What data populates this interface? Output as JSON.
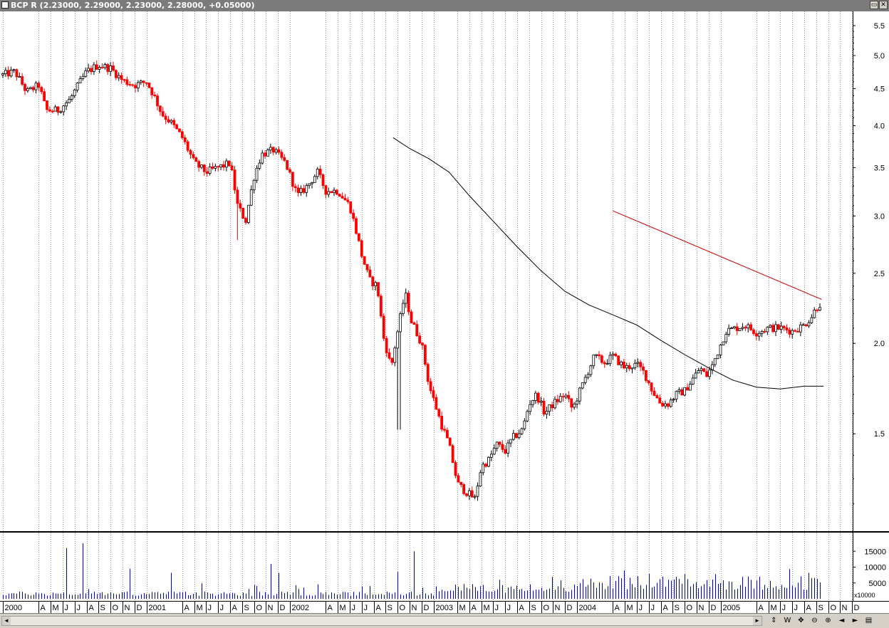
{
  "window": {
    "title": "BCP R",
    "quote": "(2.23000, 2.29000, 2.23000, 2.28000, +0.05000)",
    "buttons": [
      "▭",
      "✕"
    ]
  },
  "colors": {
    "up": "#000000",
    "down": "#ff0000",
    "volume": "#0000cc",
    "ma": "#000000",
    "trendline": "#cc0000",
    "grid": "#9a9a9a"
  },
  "chart_data": [
    {
      "type": "candlestick",
      "scale": "log",
      "ylim": [
        1.1,
        5.6
      ],
      "ytick_labels": [
        "5.5",
        "5.0",
        "4.5",
        "4.0",
        "3.5",
        "3.0",
        "2.5",
        "2.0",
        "1.5"
      ],
      "xlim": [
        "2000-01",
        "2005-11"
      ],
      "grid": "vertical dotted",
      "x_labels": [
        {
          "label": "2000",
          "date": "2000-01"
        },
        {
          "label": "A",
          "date": "2000-04"
        },
        {
          "label": "M",
          "date": "2000-05"
        },
        {
          "label": "J",
          "date": "2000-06"
        },
        {
          "label": "J",
          "date": "2000-07"
        },
        {
          "label": "A",
          "date": "2000-08"
        },
        {
          "label": "S",
          "date": "2000-09"
        },
        {
          "label": "O",
          "date": "2000-10"
        },
        {
          "label": "N",
          "date": "2000-11"
        },
        {
          "label": "D",
          "date": "2000-12"
        },
        {
          "label": "2001",
          "date": "2001-01"
        },
        {
          "label": "A",
          "date": "2001-04"
        },
        {
          "label": "M",
          "date": "2001-05"
        },
        {
          "label": "J",
          "date": "2001-06"
        },
        {
          "label": "J",
          "date": "2001-07"
        },
        {
          "label": "A",
          "date": "2001-08"
        },
        {
          "label": "S",
          "date": "2001-09"
        },
        {
          "label": "O",
          "date": "2001-10"
        },
        {
          "label": "N",
          "date": "2001-11"
        },
        {
          "label": "D",
          "date": "2001-12"
        },
        {
          "label": "2002",
          "date": "2002-01"
        },
        {
          "label": "A",
          "date": "2002-04"
        },
        {
          "label": "M",
          "date": "2002-05"
        },
        {
          "label": "J",
          "date": "2002-06"
        },
        {
          "label": "J",
          "date": "2002-07"
        },
        {
          "label": "A",
          "date": "2002-08"
        },
        {
          "label": "S",
          "date": "2002-09"
        },
        {
          "label": "O",
          "date": "2002-10"
        },
        {
          "label": "N",
          "date": "2002-11"
        },
        {
          "label": "D",
          "date": "2002-12"
        },
        {
          "label": "2003",
          "date": "2003-01"
        },
        {
          "label": "M",
          "date": "2003-03"
        },
        {
          "label": "A",
          "date": "2003-04"
        },
        {
          "label": "M",
          "date": "2003-05"
        },
        {
          "label": "J",
          "date": "2003-06"
        },
        {
          "label": "J",
          "date": "2003-07"
        },
        {
          "label": "A",
          "date": "2003-08"
        },
        {
          "label": "S",
          "date": "2003-09"
        },
        {
          "label": "O",
          "date": "2003-10"
        },
        {
          "label": "N",
          "date": "2003-11"
        },
        {
          "label": "D",
          "date": "2003-12"
        },
        {
          "label": "2004",
          "date": "2004-01"
        },
        {
          "label": "A",
          "date": "2004-04"
        },
        {
          "label": "M",
          "date": "2004-05"
        },
        {
          "label": "J",
          "date": "2004-06"
        },
        {
          "label": "J",
          "date": "2004-07"
        },
        {
          "label": "A",
          "date": "2004-08"
        },
        {
          "label": "S",
          "date": "2004-09"
        },
        {
          "label": "O",
          "date": "2004-10"
        },
        {
          "label": "N",
          "date": "2004-11"
        },
        {
          "label": "D",
          "date": "2004-12"
        },
        {
          "label": "2005",
          "date": "2005-01"
        },
        {
          "label": "A",
          "date": "2005-04"
        },
        {
          "label": "M",
          "date": "2005-05"
        },
        {
          "label": "J",
          "date": "2005-06"
        },
        {
          "label": "J",
          "date": "2005-07"
        },
        {
          "label": "A",
          "date": "2005-08"
        },
        {
          "label": "S",
          "date": "2005-09"
        },
        {
          "label": "O",
          "date": "2005-10"
        },
        {
          "label": "N",
          "date": "2005-11"
        },
        {
          "label": "D",
          "date": "2005-12"
        }
      ],
      "price_path": [
        [
          "2000-01-01",
          4.7
        ],
        [
          "2000-02-01",
          4.75
        ],
        [
          "2000-03-01",
          4.45
        ],
        [
          "2000-04-01",
          4.55
        ],
        [
          "2000-04-20",
          4.2
        ],
        [
          "2000-05-20",
          4.2
        ],
        [
          "2000-06-20",
          4.35
        ],
        [
          "2000-07-10",
          4.55
        ],
        [
          "2000-08-01",
          4.75
        ],
        [
          "2000-09-01",
          4.85
        ],
        [
          "2000-10-01",
          4.8
        ],
        [
          "2000-11-01",
          4.62
        ],
        [
          "2000-12-01",
          4.55
        ],
        [
          "2001-01-01",
          4.6
        ],
        [
          "2001-01-20",
          4.4
        ],
        [
          "2001-02-10",
          4.15
        ],
        [
          "2001-03-01",
          4.05
        ],
        [
          "2001-04-01",
          3.85
        ],
        [
          "2001-05-01",
          3.55
        ],
        [
          "2001-06-01",
          3.45
        ],
        [
          "2001-07-01",
          3.5
        ],
        [
          "2001-08-01",
          3.55
        ],
        [
          "2001-08-20",
          3.1
        ],
        [
          "2001-09-10",
          2.95
        ],
        [
          "2001-10-01",
          3.4
        ],
        [
          "2001-10-20",
          3.65
        ],
        [
          "2001-11-20",
          3.7
        ],
        [
          "2001-12-20",
          3.55
        ],
        [
          "2002-01-20",
          3.2
        ],
        [
          "2002-02-15",
          3.3
        ],
        [
          "2002-03-10",
          3.45
        ],
        [
          "2002-04-01",
          3.25
        ],
        [
          "2002-05-01",
          3.25
        ],
        [
          "2002-06-01",
          3.1
        ],
        [
          "2002-07-01",
          2.65
        ],
        [
          "2002-07-20",
          2.45
        ],
        [
          "2002-08-10",
          2.4
        ],
        [
          "2002-08-25",
          2.05
        ],
        [
          "2002-09-15",
          1.85
        ],
        [
          "2002-10-10",
          2.2
        ],
        [
          "2002-10-20",
          2.35
        ],
        [
          "2002-11-05",
          2.15
        ],
        [
          "2002-12-01",
          2.0
        ],
        [
          "2002-12-20",
          1.75
        ],
        [
          "2003-01-20",
          1.55
        ],
        [
          "2003-02-10",
          1.45
        ],
        [
          "2003-03-01",
          1.28
        ],
        [
          "2003-03-20",
          1.25
        ],
        [
          "2003-04-15",
          1.22
        ],
        [
          "2003-05-01",
          1.35
        ],
        [
          "2003-05-20",
          1.38
        ],
        [
          "2003-06-10",
          1.45
        ],
        [
          "2003-07-01",
          1.42
        ],
        [
          "2003-07-20",
          1.48
        ],
        [
          "2003-08-15",
          1.52
        ],
        [
          "2003-09-01",
          1.65
        ],
        [
          "2003-09-20",
          1.7
        ],
        [
          "2003-10-10",
          1.6
        ],
        [
          "2003-11-01",
          1.65
        ],
        [
          "2003-12-01",
          1.7
        ],
        [
          "2003-12-20",
          1.62
        ],
        [
          "2004-01-20",
          1.78
        ],
        [
          "2004-02-15",
          1.92
        ],
        [
          "2004-03-10",
          1.88
        ],
        [
          "2004-04-01",
          1.92
        ],
        [
          "2004-05-01",
          1.85
        ],
        [
          "2004-06-01",
          1.87
        ],
        [
          "2004-06-20",
          1.82
        ],
        [
          "2004-07-10",
          1.72
        ],
        [
          "2004-08-01",
          1.65
        ],
        [
          "2004-08-20",
          1.65
        ],
        [
          "2004-09-10",
          1.7
        ],
        [
          "2004-10-01",
          1.72
        ],
        [
          "2004-10-20",
          1.78
        ],
        [
          "2004-11-10",
          1.85
        ],
        [
          "2004-11-25",
          1.8
        ],
        [
          "2004-12-10",
          1.86
        ],
        [
          "2004-12-25",
          1.95
        ],
        [
          "2005-01-15",
          2.08
        ],
        [
          "2005-02-10",
          2.1
        ],
        [
          "2005-03-01",
          2.12
        ],
        [
          "2005-04-01",
          2.07
        ],
        [
          "2005-05-01",
          2.1
        ],
        [
          "2005-06-01",
          2.1
        ],
        [
          "2005-07-01",
          2.08
        ],
        [
          "2005-08-01",
          2.12
        ],
        [
          "2005-08-20",
          2.18
        ],
        [
          "2005-09-01",
          2.24
        ],
        [
          "2005-09-15",
          2.28
        ]
      ],
      "moving_average": [
        [
          "2002-09-20",
          3.85
        ],
        [
          "2002-11-01",
          3.72
        ],
        [
          "2002-12-20",
          3.6
        ],
        [
          "2003-02-10",
          3.45
        ],
        [
          "2003-04-01",
          3.2
        ],
        [
          "2003-06-01",
          2.95
        ],
        [
          "2003-08-01",
          2.72
        ],
        [
          "2003-10-01",
          2.52
        ],
        [
          "2003-12-01",
          2.36
        ],
        [
          "2004-02-01",
          2.26
        ],
        [
          "2004-04-01",
          2.19
        ],
        [
          "2004-06-01",
          2.12
        ],
        [
          "2004-08-01",
          2.02
        ],
        [
          "2004-10-01",
          1.93
        ],
        [
          "2004-12-01",
          1.85
        ],
        [
          "2005-02-01",
          1.78
        ],
        [
          "2005-04-01",
          1.74
        ],
        [
          "2005-06-01",
          1.73
        ],
        [
          "2005-08-01",
          1.745
        ],
        [
          "2005-09-20",
          1.745
        ]
      ],
      "trendline": [
        [
          "2004-04-01",
          3.05
        ],
        [
          "2005-09-15",
          2.3
        ]
      ],
      "spike_wicks": [
        {
          "date": "2001-08-20",
          "low": 2.78
        },
        {
          "date": "2002-10-05",
          "low": 1.52
        }
      ]
    },
    {
      "type": "bar",
      "name_label": "x10000",
      "ylim": [
        0,
        20000
      ],
      "ytick_labels": [
        "5000",
        "10000",
        "15000"
      ],
      "spikes": [
        {
          "date": "2000-06-10",
          "value": 16000
        },
        {
          "date": "2000-07-20",
          "value": 17500
        },
        {
          "date": "2000-11-20",
          "value": 9500
        },
        {
          "date": "2001-03-01",
          "value": 8200
        },
        {
          "date": "2001-11-10",
          "value": 11000
        },
        {
          "date": "2001-12-01",
          "value": 8200
        },
        {
          "date": "2002-10-01",
          "value": 8500
        },
        {
          "date": "2002-11-10",
          "value": 15000
        },
        {
          "date": "2003-06-20",
          "value": 6000
        },
        {
          "date": "2004-10-01",
          "value": 7800
        },
        {
          "date": "2004-12-20",
          "value": 7800
        },
        {
          "date": "2005-08-15",
          "value": 8200
        }
      ]
    }
  ]
}
